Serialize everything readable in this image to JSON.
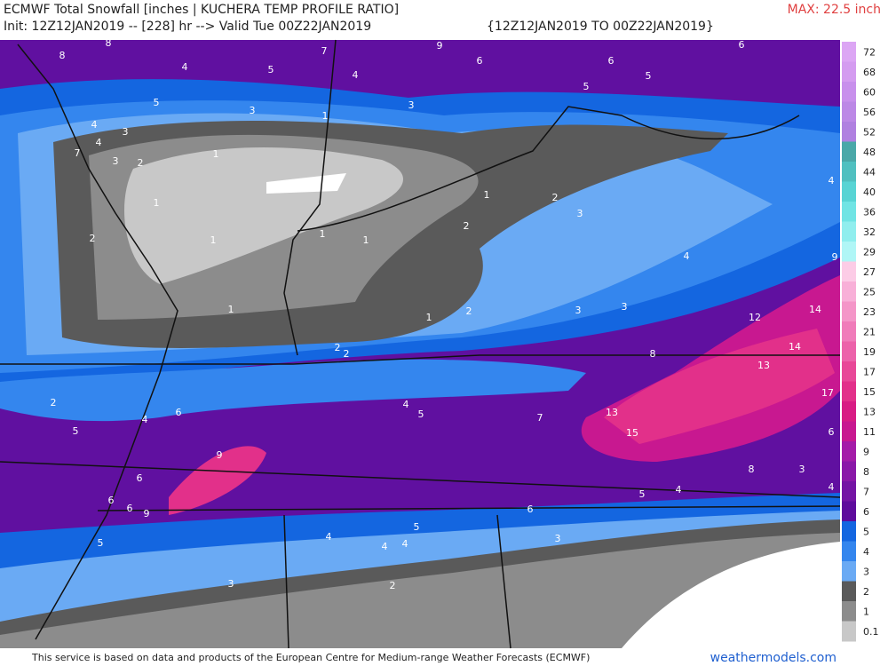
{
  "header": {
    "title": "ECMWF Total Snowfall [inches | KUCHERA TEMP PROFILE RATIO]",
    "init": "Init: 12Z12JAN2019 -- [228] hr --> Valid Tue 00Z22JAN2019",
    "period": "{12Z12JAN2019 TO 00Z22JAN2019}",
    "max": "MAX: 22.5 inch"
  },
  "colorbar": {
    "levels": [
      {
        "label": 72,
        "color": "#dca6f4"
      },
      {
        "label": 68,
        "color": "#d49cf0"
      },
      {
        "label": 60,
        "color": "#c890ec"
      },
      {
        "label": 56,
        "color": "#bc88e6"
      },
      {
        "label": 52,
        "color": "#b080e0"
      },
      {
        "label": 48,
        "color": "#4aa8a8"
      },
      {
        "label": 44,
        "color": "#50c0c0"
      },
      {
        "label": 40,
        "color": "#58d4d4"
      },
      {
        "label": 36,
        "color": "#70e4e4"
      },
      {
        "label": 32,
        "color": "#90eeee"
      },
      {
        "label": 29,
        "color": "#b0f6f6"
      },
      {
        "label": 27,
        "color": "#fccce6"
      },
      {
        "label": 25,
        "color": "#f8b0d8"
      },
      {
        "label": 23,
        "color": "#f496c8"
      },
      {
        "label": 21,
        "color": "#f07cba"
      },
      {
        "label": 19,
        "color": "#ec62aa"
      },
      {
        "label": 17,
        "color": "#e84898"
      },
      {
        "label": 15,
        "color": "#e2308a"
      },
      {
        "label": 13,
        "color": "#d81c84"
      },
      {
        "label": 11,
        "color": "#c81890"
      },
      {
        "label": 9,
        "color": "#a41ca8"
      },
      {
        "label": 8,
        "color": "#8a18a8"
      },
      {
        "label": 7,
        "color": "#7414a4"
      },
      {
        "label": 6,
        "color": "#5e0c9c"
      },
      {
        "label": 5,
        "color": "#1466e0"
      },
      {
        "label": 4,
        "color": "#3486ee"
      },
      {
        "label": 3,
        "color": "#6aaaf4"
      },
      {
        "label": 2,
        "color": "#5a5a5a"
      },
      {
        "label": 1,
        "color": "#8c8c8c"
      },
      {
        "label": 0.1,
        "color": "#c8c8c8"
      }
    ]
  },
  "map": {
    "contour_labels": [
      8,
      8,
      7,
      9,
      6,
      6,
      4,
      5,
      4,
      6,
      5,
      5,
      3,
      3,
      5,
      4,
      3,
      4,
      7,
      3,
      2,
      1,
      1,
      1,
      1,
      2,
      1,
      2,
      3,
      2,
      1,
      1,
      1,
      2,
      1,
      3,
      3,
      4,
      4,
      9,
      12,
      14,
      14,
      8,
      13,
      17,
      13,
      15,
      7,
      4,
      5,
      2,
      6,
      4,
      5,
      6,
      9,
      8,
      3,
      6,
      5,
      4,
      4,
      6,
      6,
      9,
      6,
      5,
      4,
      5,
      4,
      4,
      3,
      3,
      2,
      2,
      2
    ]
  },
  "footer": {
    "note": "This service is based on data and products of the European Centre for Medium-range Weather Forecasts (ECMWF)",
    "brand": "weathermodels.com"
  }
}
